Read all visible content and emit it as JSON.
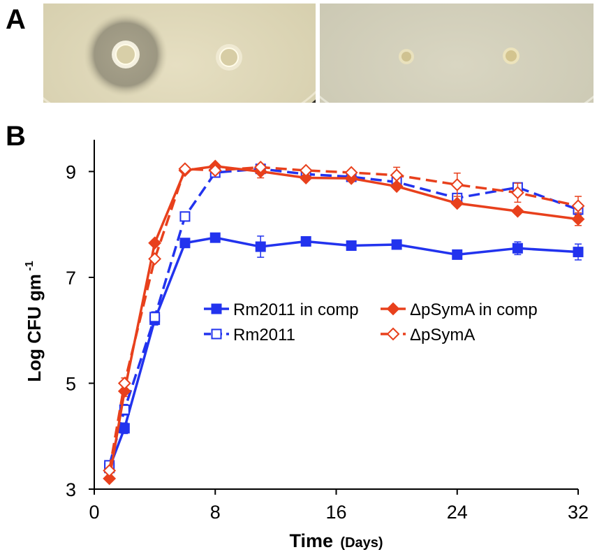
{
  "panels": {
    "a_label": "A",
    "b_label": "B"
  },
  "chart_data": {
    "type": "line",
    "xlabel": "Time",
    "xlabel_unit": "(Days)",
    "ylabel": "Log CFU gm",
    "ylabel_superscript": "-1",
    "xlim": [
      0,
      32
    ],
    "ylim": [
      3,
      9.6
    ],
    "xticks": [
      0,
      8,
      16,
      24,
      32
    ],
    "yticks": [
      3,
      5,
      7,
      9
    ],
    "grid": false,
    "legend_position": "center",
    "series": [
      {
        "name": "Rm2011 in comp",
        "color": "#2233ee",
        "line": "solid",
        "marker": "filled-square",
        "x": [
          1,
          2,
          4,
          6,
          8,
          11,
          14,
          17,
          20,
          24,
          28,
          32
        ],
        "y": [
          3.4,
          4.15,
          6.2,
          7.65,
          7.75,
          7.58,
          7.68,
          7.6,
          7.62,
          7.43,
          7.55,
          7.48
        ],
        "err": [
          0.05,
          0.1,
          0.1,
          0.05,
          0.05,
          0.2,
          0.05,
          0.05,
          0.05,
          0.08,
          0.12,
          0.15
        ]
      },
      {
        "name": "Rm2011",
        "color": "#2233ee",
        "line": "dashed",
        "marker": "open-square",
        "x": [
          1,
          2,
          4,
          6,
          8,
          11,
          14,
          17,
          20,
          24,
          28,
          32
        ],
        "y": [
          3.45,
          4.5,
          6.25,
          8.15,
          8.98,
          9.05,
          8.95,
          8.9,
          8.8,
          8.5,
          8.7,
          8.28
        ],
        "err": [
          0.05,
          0.1,
          0.1,
          0.05,
          0.05,
          0.05,
          0.05,
          0.05,
          0.05,
          0.05,
          0.05,
          0.05
        ]
      },
      {
        "name": "ΔpSymA in comp",
        "color": "#e8401c",
        "line": "solid",
        "marker": "filled-diamond",
        "x": [
          1,
          2,
          4,
          6,
          8,
          11,
          14,
          17,
          20,
          24,
          28,
          32
        ],
        "y": [
          3.2,
          4.85,
          7.65,
          9.02,
          9.1,
          9.0,
          8.88,
          8.87,
          8.72,
          8.4,
          8.25,
          8.1
        ],
        "err": [
          0.05,
          0.1,
          0.05,
          0.05,
          0.05,
          0.12,
          0.05,
          0.05,
          0.05,
          0.05,
          0.05,
          0.12
        ]
      },
      {
        "name": "ΔpSymA",
        "color": "#e8401c",
        "line": "dashed",
        "marker": "open-diamond",
        "x": [
          1,
          2,
          4,
          6,
          8,
          11,
          14,
          17,
          20,
          24,
          28,
          32
        ],
        "y": [
          3.35,
          5.0,
          7.35,
          9.05,
          9.02,
          9.08,
          9.02,
          8.98,
          8.93,
          8.75,
          8.6,
          8.35
        ],
        "err": [
          0.05,
          0.1,
          0.05,
          0.05,
          0.05,
          0.05,
          0.05,
          0.05,
          0.15,
          0.22,
          0.18,
          0.18
        ]
      }
    ]
  }
}
